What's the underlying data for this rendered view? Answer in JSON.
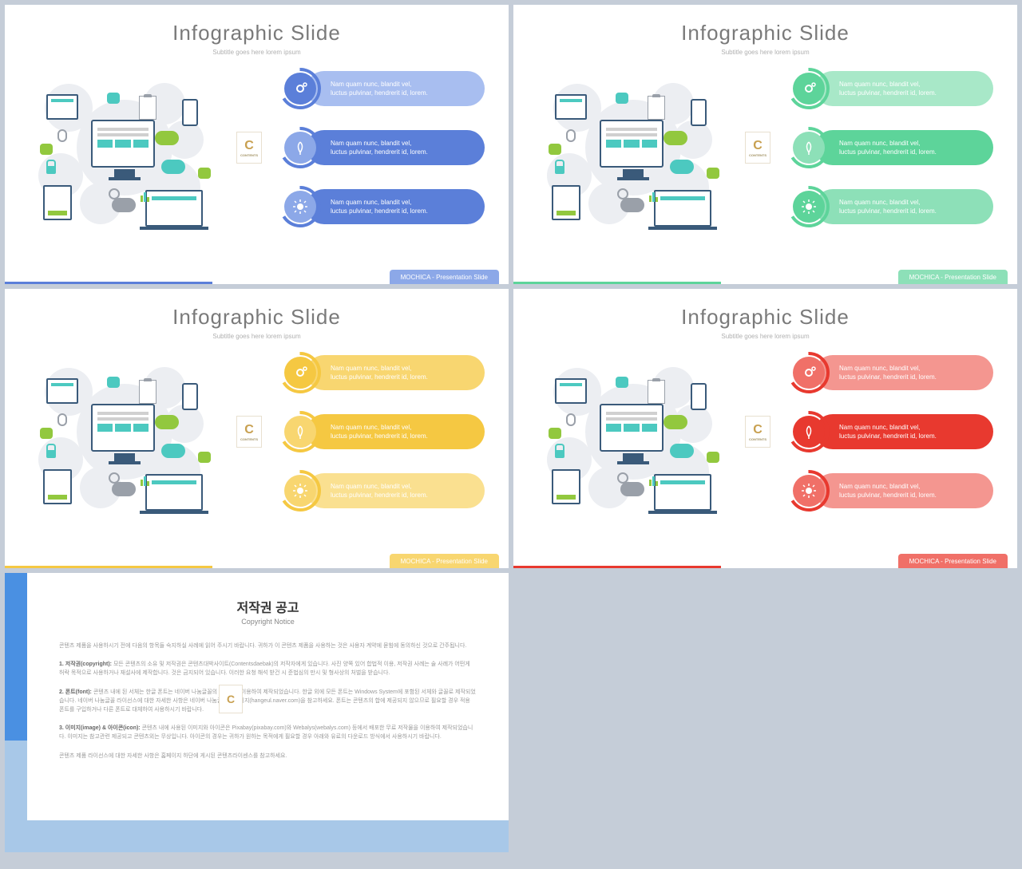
{
  "title": "Infographic Slide",
  "subtitle": "Subtitle goes here lorem ipsum",
  "footer_text": "MOCHICA - Presentation Slide",
  "badge_letter": "C",
  "badge_sub": "CONTENTS",
  "pill_text_1": "Nam quam nunc, blandit vel,",
  "pill_text_2": "luctus pulvinar, hendrerit id, lorem.",
  "variants": [
    {
      "primary": "#5b7fd9",
      "light": "#8ca8e8",
      "lighter": "#a8bef0",
      "footer_bar": "#5b7fd9",
      "footer_tab": "#8ca8e8",
      "pill_bgs": [
        "#a8bef0",
        "#5b7fd9",
        "#5b7fd9"
      ],
      "ring_bgs": [
        "#5b7fd9",
        "#8ca8e8",
        "#8ca8e8"
      ]
    },
    {
      "primary": "#5dd49a",
      "light": "#8de0b8",
      "lighter": "#a8e8c8",
      "footer_bar": "#5dd49a",
      "footer_tab": "#8de0b8",
      "pill_bgs": [
        "#a8e8c8",
        "#5dd49a",
        "#8de0b8"
      ],
      "ring_bgs": [
        "#5dd49a",
        "#8de0b8",
        "#5dd49a"
      ]
    },
    {
      "primary": "#f5c842",
      "light": "#f8d670",
      "lighter": "#fae090",
      "footer_bar": "#f5c842",
      "footer_tab": "#f8d670",
      "pill_bgs": [
        "#f8d670",
        "#f5c842",
        "#fae090"
      ],
      "ring_bgs": [
        "#f5c842",
        "#f8d670",
        "#f8d670"
      ]
    },
    {
      "primary": "#e8392f",
      "light": "#f07068",
      "lighter": "#f49690",
      "footer_bar": "#e8392f",
      "footer_tab": "#f07068",
      "pill_bgs": [
        "#f49690",
        "#e8392f",
        "#f49690"
      ],
      "ring_bgs": [
        "#f07068",
        "#e8392f",
        "#f07068"
      ]
    }
  ],
  "icons": [
    "gear",
    "leaf",
    "sun"
  ],
  "notice": {
    "title": "저작권 공고",
    "subtitle": "Copyright Notice",
    "side_top": "#4a90e2",
    "side_bottom": "#a8c8e8",
    "p_intro": "콘텐츠 제품을 사용하시기 전에 다음의 항목들 숙지하실 사례에 읽어 주시기 바랍니다. 귀하가 이 콘텐츠 제품을 사용하는 것은 사용자 계약에 묻힘에 동의하신 것으로 간주됩니다.",
    "p1_label": "1. 저작권(copyright):",
    "p1": "모든 콘텐츠의 소유 및 저작권은 콘텐츠대박사이트(Contentsdaebak)의 저작자에게 있습니다. 사진 양쪽 있어 합법적 이용, 저작권 사례는 술 사례가 어떤게 허락 목적으로 사용하거나 재설사에 제작합니다. 것은 금지되어 있습니다. 이러한 요청 해석 받건 시 준법심의 만시 및 형사상의 처벌을 받습니다.",
    "p2_label": "2. 폰트(font):",
    "p2": "콘텐츠 내에 된 서체는 한글 폰트는 네이버 나눔글꼴의 저작물을 이용하여 제작되었습니다. 한글 외에 모든 폰트는 Windows System에 포함된 서체와 글꼴로 제작되었습니다. 네이버 나눔글꼴 라이선스에 대한 자세한 사항은 네이버 나눔글꼴 홈페이지(hangeul.naver.com)을 참고하세요. 폰트는 콘텐츠의 합에 제공되지 않으므로 필요할 경우 적용 폰트를 구입하거나 다른 폰트로 대체하여 사용하시기 바랍니다.",
    "p3_label": "3. 이미지(image) & 아이콘(icon):",
    "p3": "콘텐츠 내에 사용된 이미지와 아이콘은 Pixabay(pixabay.com)와 Webalys(webalys.com) 등에서 배포한 무료 저작물을 이용하여 제작되었습니다. 이미지는 참고관련 제공되고 콘텐츠외는 무상입니다. 아이콘의 경우는 귀하가 원하는 목적에게 필요할 경우 아래와 유료의 다운로드 방식에서 사용하시기 바랍니다.",
    "p_outro": "콘텐츠 제품 라이선스에 대한 자세한 사항은 홈페이지 하단에 게시된 콘텐츠라이센스를 참고하세요."
  }
}
